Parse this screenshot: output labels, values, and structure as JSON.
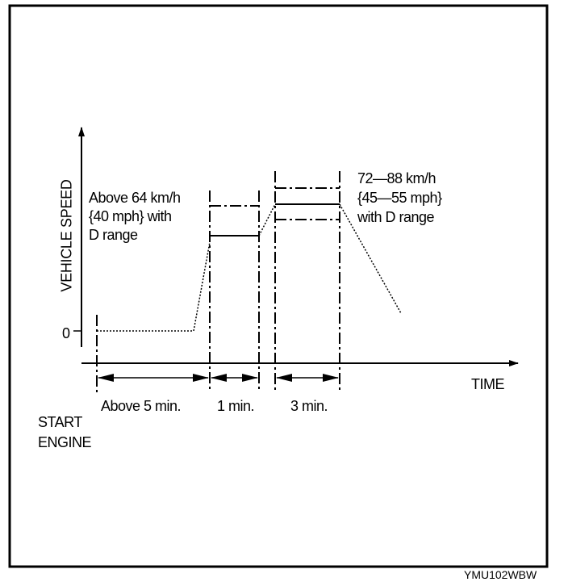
{
  "diagram": {
    "y_axis_label": "VEHICLE SPEED",
    "y_zero_label": "0",
    "x_axis_label": "TIME",
    "phase1_note": [
      "Above 64 km/h",
      "{40 mph} with",
      "D range"
    ],
    "phase3_note": [
      "72—88 km/h",
      "{45—55 mph}",
      "with D range"
    ],
    "durations": [
      "Above 5 min.",
      "1 min.",
      "3 min."
    ],
    "start_label": [
      "START",
      "ENGINE"
    ],
    "figure_code": "YMU102WBW"
  }
}
